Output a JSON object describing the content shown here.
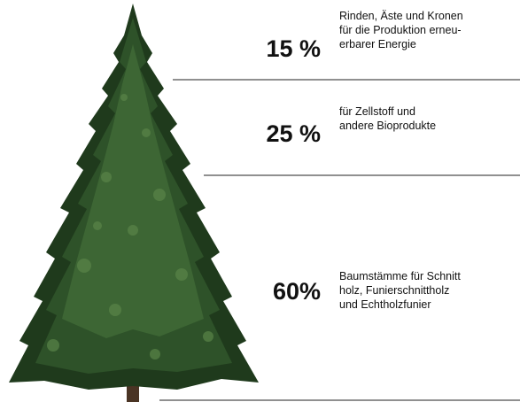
{
  "items": [
    {
      "percent": "15 %",
      "lines": [
        "Rinden, Äste und Kronen",
        "für die Produktion erneu-",
        "erbarer Energie"
      ]
    },
    {
      "percent": "25 %",
      "lines": [
        "für Zellstoff und",
        "andere Bioprodukte"
      ]
    },
    {
      "percent": "60%",
      "lines": [
        "Baumstämme für Schnitt",
        "holz, Funierschnittholz",
        "und Echtholzfunier"
      ]
    }
  ]
}
